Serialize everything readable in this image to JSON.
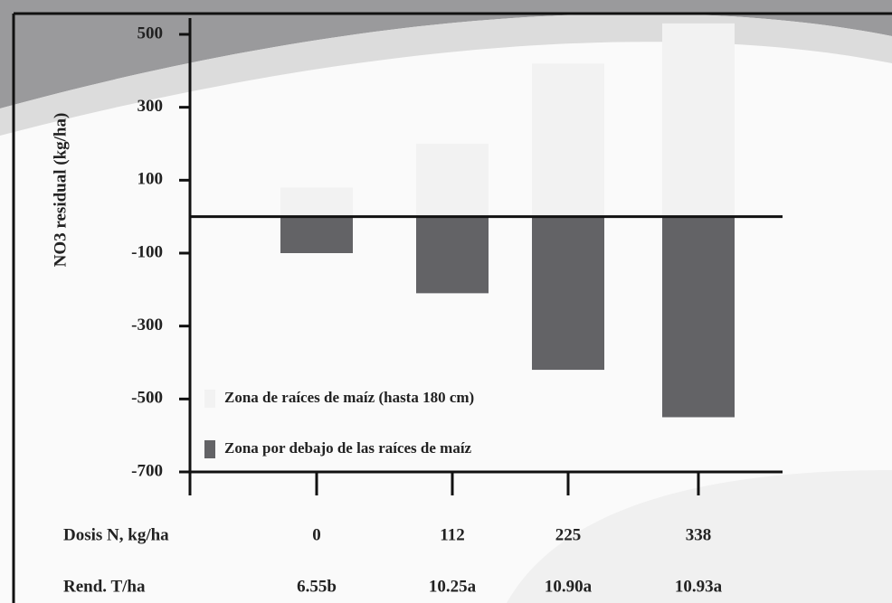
{
  "chart_data": {
    "type": "bar",
    "ylabel": "NO3 residual (kg/ha)",
    "xlabel": "Dosis N, kg/ha",
    "categories": [
      "0",
      "112",
      "225",
      "338"
    ],
    "series": [
      {
        "name": "Zona de raíces de maíz (hasta 180 cm)",
        "color": "#f2f2f2",
        "values": [
          80,
          200,
          420,
          530
        ]
      },
      {
        "name": "Zona por debajo de las raíces de maíz",
        "color": "#636366",
        "values": [
          -100,
          -210,
          -420,
          -550
        ]
      }
    ],
    "ylim": [
      -700,
      500
    ],
    "yticks": [
      500,
      300,
      100,
      -100,
      -300,
      -500,
      -700
    ],
    "grid": false,
    "legend": "lower-left",
    "extra_row": {
      "label": "Rend. T/ha",
      "values": [
        "6.55b",
        "10.25a",
        "10.90a",
        "10.93a"
      ]
    }
  }
}
